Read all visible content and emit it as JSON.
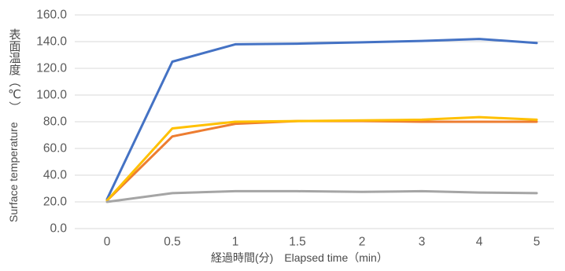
{
  "chart_data": {
    "type": "line",
    "title": "",
    "ylabel": "Surface temperature",
    "ylabel_jp": "表面温度（℃）",
    "xlabel": "経過時間(分)　Elapsed time（min）",
    "categories": [
      "0",
      "0.5",
      "1",
      "1.5",
      "2",
      "3",
      "4",
      "5"
    ],
    "yticks": [
      "0.0",
      "20.0",
      "40.0",
      "60.0",
      "80.0",
      "100.0",
      "120.0",
      "140.0",
      "160.0"
    ],
    "ylim": [
      0,
      160
    ],
    "grid": true,
    "legend": "none",
    "series": [
      {
        "color": "#4472C4",
        "values": [
          22,
          125,
          138,
          138.5,
          139.5,
          140.5,
          142,
          139
        ]
      },
      {
        "color": "#ED7D31",
        "values": [
          21,
          69,
          78.5,
          80.5,
          80.5,
          80,
          80,
          80
        ]
      },
      {
        "color": "#FFC000",
        "values": [
          21,
          75,
          80,
          80.5,
          81,
          81.5,
          83.5,
          81.5
        ]
      },
      {
        "color": "#A5A5A5",
        "values": [
          20,
          26.5,
          28,
          28,
          27.5,
          28,
          27,
          26.5
        ]
      }
    ]
  }
}
